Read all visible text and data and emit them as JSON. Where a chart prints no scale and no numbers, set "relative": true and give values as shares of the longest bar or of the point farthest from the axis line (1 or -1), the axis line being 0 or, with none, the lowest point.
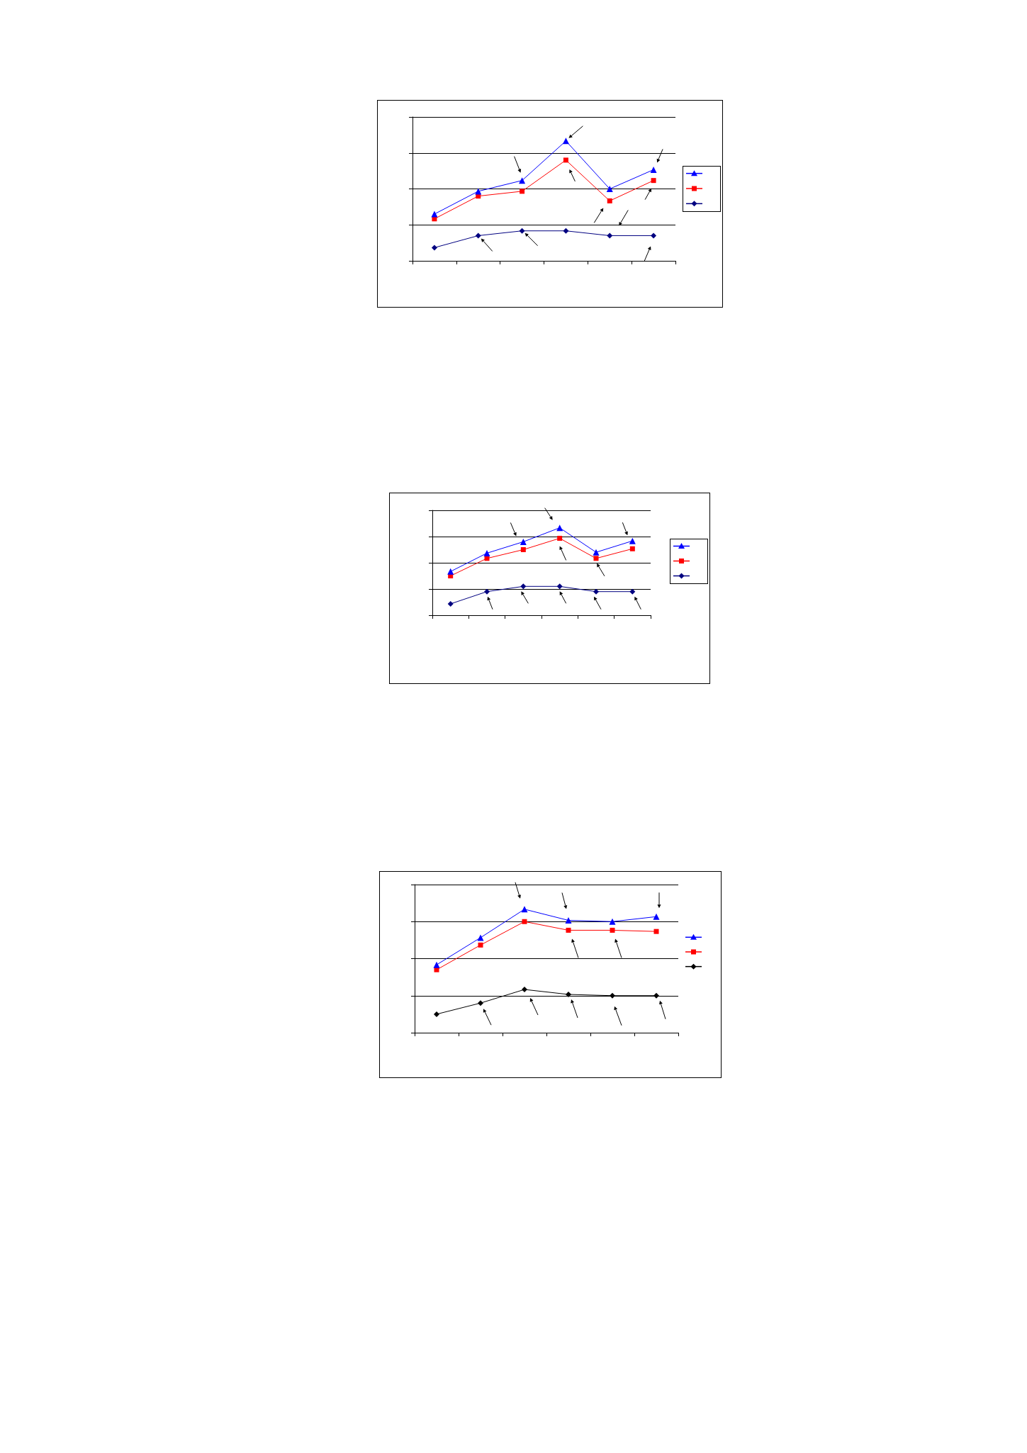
{
  "chart_data": [
    {
      "type": "line",
      "relative": true,
      "categories": [
        null,
        null,
        null,
        null,
        null,
        null
      ],
      "series": [
        {
          "color": "#0000ff",
          "marker": "triangle",
          "values": [
            0.39,
            0.58,
            0.67,
            1,
            0.6,
            0.76
          ]
        },
        {
          "color": "#ff0000",
          "marker": "square",
          "values": [
            0.35,
            0.54,
            0.58,
            0.84,
            0.5,
            0.67
          ]
        },
        {
          "color": "#000080",
          "marker": "diamond",
          "values": [
            0.11,
            0.21,
            0.25,
            0.25,
            0.21,
            0.21
          ]
        }
      ],
      "grid": "y"
    },
    {
      "type": "line",
      "relative": true,
      "categories": [
        null,
        null,
        null,
        null,
        null,
        null
      ],
      "series": [
        {
          "color": "#0000ff",
          "marker": "triangle",
          "values": [
            0.5,
            0.71,
            0.84,
            1,
            0.72,
            0.85
          ]
        },
        {
          "color": "#ff0000",
          "marker": "square",
          "values": [
            0.45,
            0.65,
            0.75,
            0.88,
            0.65,
            0.76
          ]
        },
        {
          "color": "#000080",
          "marker": "diamond",
          "values": [
            0.13,
            0.27,
            0.33,
            0.33,
            0.27,
            0.27
          ]
        }
      ],
      "grid": "y"
    },
    {
      "type": "line",
      "relative": true,
      "categories": [
        null,
        null,
        null,
        null,
        null,
        null
      ],
      "series": [
        {
          "color": "#0000ff",
          "marker": "triangle",
          "values": [
            0.55,
            0.77,
            1,
            0.91,
            0.9,
            0.94
          ]
        },
        {
          "color": "#ff0000",
          "marker": "square",
          "values": [
            0.51,
            0.71,
            0.9,
            0.83,
            0.83,
            0.82
          ]
        },
        {
          "color": "#000000",
          "marker": "diamond",
          "values": [
            0.15,
            0.24,
            0.35,
            0.31,
            0.3,
            0.3
          ]
        }
      ],
      "grid": "y"
    }
  ]
}
